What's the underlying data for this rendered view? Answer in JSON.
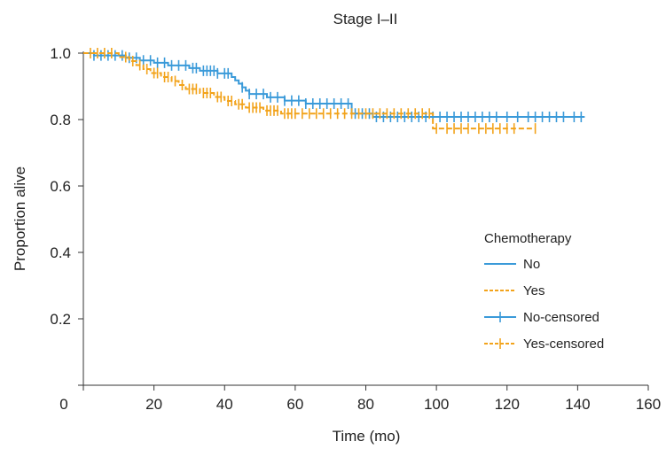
{
  "chart_data": {
    "type": "line",
    "title": "Stage I–II",
    "xlabel": "Time (mo)",
    "ylabel": "Proportion alive",
    "xlim": [
      0,
      160
    ],
    "ylim": [
      0,
      1.0
    ],
    "x_ticks": [
      "0",
      "20",
      "40",
      "60",
      "80",
      "100",
      "120",
      "140",
      "160"
    ],
    "y_ticks": [
      "0.2",
      "0.4",
      "0.6",
      "0.8",
      "1.0"
    ],
    "grid": false,
    "legend_position": "right",
    "legend_title": "Chemotherapy",
    "legend": [
      {
        "label": "No",
        "color": "#3a9ad9",
        "style": "solid"
      },
      {
        "label": "Yes",
        "color": "#f2a31b",
        "style": "dashed"
      },
      {
        "label": "No-censored",
        "color": "#3a9ad9",
        "style": "solid-cross"
      },
      {
        "label": "Yes-censored",
        "color": "#f2a31b",
        "style": "dashed-cross"
      }
    ],
    "series": [
      {
        "name": "No",
        "color": "#3a9ad9",
        "dash": "",
        "steps": [
          [
            0,
            1.0
          ],
          [
            3,
            0.993
          ],
          [
            12,
            0.986
          ],
          [
            16,
            0.978
          ],
          [
            20,
            0.971
          ],
          [
            24,
            0.963
          ],
          [
            30,
            0.955
          ],
          [
            33,
            0.947
          ],
          [
            38,
            0.939
          ],
          [
            42,
            0.928
          ],
          [
            43,
            0.918
          ],
          [
            44,
            0.908
          ],
          [
            45,
            0.897
          ],
          [
            46,
            0.887
          ],
          [
            47,
            0.877
          ],
          [
            52,
            0.867
          ],
          [
            57,
            0.857
          ],
          [
            63,
            0.848
          ],
          [
            76,
            0.818
          ],
          [
            82,
            0.808
          ],
          [
            142,
            0.808
          ]
        ],
        "censored": [
          3,
          5,
          7,
          9,
          11,
          13,
          15,
          17,
          19,
          21,
          23,
          25,
          27,
          29,
          31,
          32,
          34,
          35,
          36,
          37,
          38,
          40,
          41,
          45,
          47,
          49,
          51,
          53,
          55,
          57,
          59,
          61,
          63,
          65,
          67,
          69,
          71,
          73,
          75,
          77,
          79,
          81,
          83,
          85,
          87,
          89,
          91,
          93,
          95,
          97,
          99,
          101,
          103,
          105,
          107,
          109,
          111,
          113,
          115,
          117,
          120,
          123,
          126,
          128,
          130,
          132,
          134,
          136,
          139,
          141
        ]
      },
      {
        "name": "Yes",
        "color": "#f2a31b",
        "dash": "6 3",
        "steps": [
          [
            0,
            1.0
          ],
          [
            10,
            0.988
          ],
          [
            13,
            0.976
          ],
          [
            15,
            0.964
          ],
          [
            17,
            0.952
          ],
          [
            19,
            0.94
          ],
          [
            22,
            0.928
          ],
          [
            25,
            0.916
          ],
          [
            27,
            0.904
          ],
          [
            29,
            0.892
          ],
          [
            33,
            0.88
          ],
          [
            37,
            0.868
          ],
          [
            40,
            0.856
          ],
          [
            43,
            0.846
          ],
          [
            46,
            0.836
          ],
          [
            51,
            0.827
          ],
          [
            56,
            0.818
          ],
          [
            99,
            0.773
          ],
          [
            128,
            0.773
          ]
        ],
        "censored": [
          2,
          4,
          6,
          8,
          12,
          14,
          16,
          18,
          20,
          21,
          23,
          24,
          26,
          28,
          30,
          31,
          32,
          34,
          35,
          36,
          38,
          39,
          41,
          42,
          44,
          45,
          47,
          48,
          49,
          50,
          52,
          53,
          54,
          55,
          57,
          58,
          59,
          60,
          62,
          64,
          66,
          68,
          70,
          72,
          74,
          76,
          78,
          80,
          82,
          84,
          86,
          88,
          90,
          92,
          94,
          96,
          98,
          100,
          103,
          105,
          107,
          109,
          112,
          114,
          116,
          118,
          120,
          122,
          128
        ]
      }
    ]
  }
}
